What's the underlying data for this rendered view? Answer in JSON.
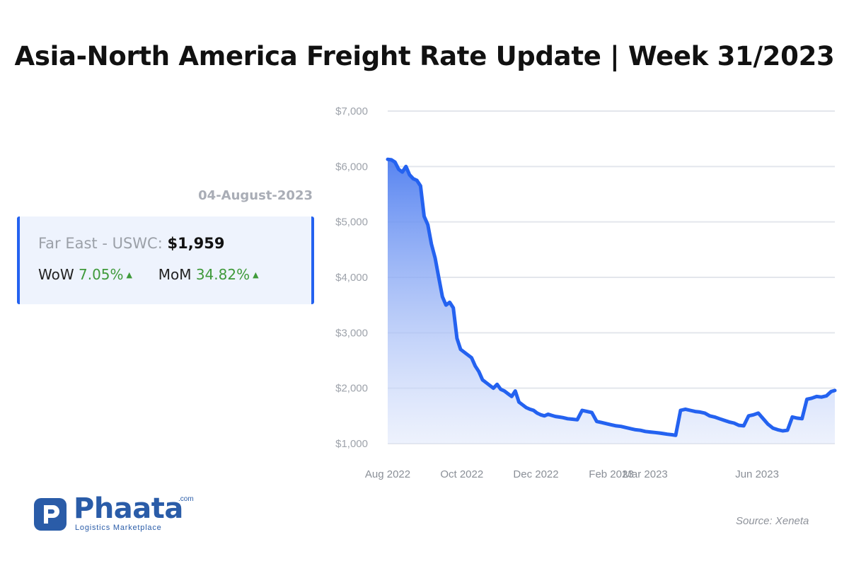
{
  "title": "Asia-North America Freight Rate Update | Week 31/2023",
  "date": "04-August-2023",
  "card": {
    "route": "Far East - USWC:",
    "price": "$1,959",
    "wow_label": "WoW",
    "wow_value": "7.05%",
    "mom_label": "MoM",
    "mom_value": "34.82%"
  },
  "logo": {
    "name": "Phaata",
    "suffix": ".com",
    "tagline": "Logistics Marketplace"
  },
  "source": "Source: Xeneta",
  "colors": {
    "line": "#2462f0",
    "positive": "#3f9a3a",
    "brand": "#2a5ca8"
  },
  "chart_data": {
    "type": "area",
    "title": "",
    "xlabel": "",
    "ylabel": "",
    "ylim": [
      1000,
      7000
    ],
    "yticks": [
      1000,
      2000,
      3000,
      4000,
      5000,
      6000,
      7000
    ],
    "ytick_labels": [
      "$1,000",
      "$2,000",
      "$3,000",
      "$4,000",
      "$5,000",
      "$6,000",
      "$7,000"
    ],
    "xlim": [
      "2022-08-01",
      "2023-08-04"
    ],
    "xticks": [
      "2022-08-01",
      "2022-10-01",
      "2022-12-01",
      "2023-02-01",
      "2023-03-01",
      "2023-06-01"
    ],
    "xtick_labels": [
      "Aug 2022",
      "Oct 2022",
      "Dec 2022",
      "Feb 2023",
      "Mar 2023",
      "Jun 2023"
    ],
    "grid": true,
    "series": [
      {
        "x": [
          "2022-08-01",
          "2022-08-04",
          "2022-08-07",
          "2022-08-10",
          "2022-08-13",
          "2022-08-16",
          "2022-08-19",
          "2022-08-22",
          "2022-08-25",
          "2022-08-28",
          "2022-08-31",
          "2022-09-03",
          "2022-09-06",
          "2022-09-09",
          "2022-09-12",
          "2022-09-15",
          "2022-09-18",
          "2022-09-21",
          "2022-09-24",
          "2022-09-27",
          "2022-09-30",
          "2022-10-03",
          "2022-10-06",
          "2022-10-09",
          "2022-10-12",
          "2022-10-15",
          "2022-10-18",
          "2022-10-21",
          "2022-10-24",
          "2022-10-27",
          "2022-10-30",
          "2022-11-02",
          "2022-11-05",
          "2022-11-08",
          "2022-11-11",
          "2022-11-14",
          "2022-11-17",
          "2022-11-20",
          "2022-11-23",
          "2022-11-26",
          "2022-11-29",
          "2022-12-02",
          "2022-12-05",
          "2022-12-08",
          "2022-12-11",
          "2022-12-14",
          "2022-12-17",
          "2022-12-20",
          "2022-12-23",
          "2022-12-27",
          "2022-12-31",
          "2023-01-04",
          "2023-01-08",
          "2023-01-12",
          "2023-01-16",
          "2023-01-20",
          "2023-01-24",
          "2023-01-28",
          "2023-02-01",
          "2023-02-05",
          "2023-02-09",
          "2023-02-13",
          "2023-02-17",
          "2023-02-21",
          "2023-02-25",
          "2023-03-01",
          "2023-03-05",
          "2023-03-09",
          "2023-03-13",
          "2023-03-16",
          "2023-03-19",
          "2023-03-23",
          "2023-03-26",
          "2023-03-30",
          "2023-04-03",
          "2023-04-07",
          "2023-04-11",
          "2023-04-15",
          "2023-04-19",
          "2023-04-23",
          "2023-04-27",
          "2023-05-01",
          "2023-05-05",
          "2023-05-09",
          "2023-05-13",
          "2023-05-17",
          "2023-05-21",
          "2023-05-25",
          "2023-05-29",
          "2023-06-02",
          "2023-06-06",
          "2023-06-10",
          "2023-06-14",
          "2023-06-18",
          "2023-06-22",
          "2023-06-26",
          "2023-06-30",
          "2023-07-04",
          "2023-07-08",
          "2023-07-12",
          "2023-07-16",
          "2023-07-20",
          "2023-07-24",
          "2023-07-28",
          "2023-08-01",
          "2023-08-04"
        ],
        "values": [
          6130,
          6120,
          6080,
          5950,
          5900,
          6000,
          5850,
          5780,
          5750,
          5650,
          5100,
          4950,
          4600,
          4350,
          4000,
          3650,
          3500,
          3550,
          3450,
          2900,
          2700,
          2650,
          2600,
          2550,
          2400,
          2300,
          2150,
          2100,
          2050,
          2000,
          2070,
          1980,
          1950,
          1900,
          1850,
          1950,
          1750,
          1700,
          1650,
          1620,
          1600,
          1550,
          1520,
          1500,
          1530,
          1510,
          1490,
          1480,
          1470,
          1450,
          1440,
          1430,
          1600,
          1580,
          1560,
          1400,
          1380,
          1360,
          1340,
          1320,
          1310,
          1290,
          1270,
          1250,
          1240,
          1220,
          1210,
          1200,
          1190,
          1180,
          1170,
          1160,
          1150,
          1600,
          1620,
          1600,
          1580,
          1570,
          1550,
          1500,
          1480,
          1450,
          1420,
          1390,
          1370,
          1330,
          1320,
          1500,
          1520,
          1550,
          1450,
          1350,
          1280,
          1250,
          1230,
          1240,
          1480,
          1460,
          1450,
          1800,
          1820,
          1850,
          1840,
          1860,
          1940,
          1959
        ]
      }
    ]
  }
}
